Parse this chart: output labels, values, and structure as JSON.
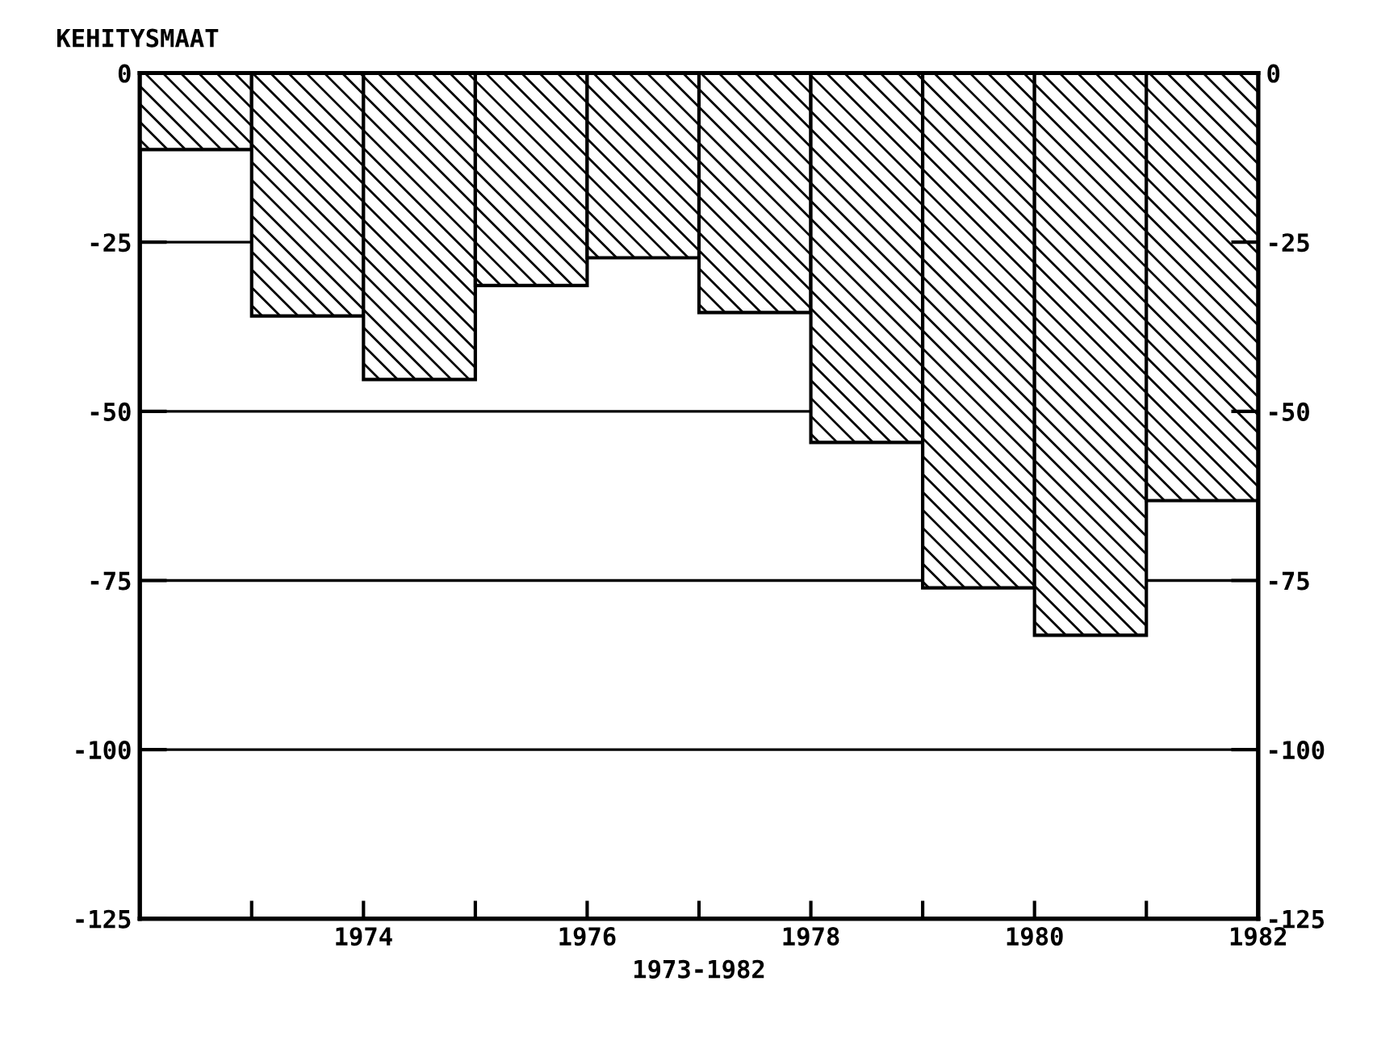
{
  "chart_data": {
    "type": "bar",
    "title": "KEHITYSMAAT",
    "xlabel": "1973-1982",
    "x": [
      1972.5,
      1973.5,
      1974.5,
      1975.5,
      1976.5,
      1977.5,
      1978.5,
      1979.5,
      1980.5,
      1981.5
    ],
    "values": [
      -11.3,
      -35.9,
      -45.3,
      -31.4,
      -27.3,
      -35.4,
      -54.6,
      -76.1,
      -83.1,
      -63.2
    ],
    "color": "#000000",
    "xlim": [
      1972,
      1982
    ],
    "xticks": [
      {
        "value": 1973,
        "label": null
      },
      1974,
      {
        "value": 1975,
        "label": null
      },
      1976,
      {
        "value": 1977,
        "label": null
      },
      1978,
      {
        "value": 1979,
        "label": null
      },
      1980,
      {
        "value": 1981,
        "label": null
      },
      1982
    ],
    "ylim": [
      -125,
      0
    ],
    "yticks": [
      0,
      -25,
      -50,
      -75,
      -100,
      -125
    ],
    "y2lim": [
      -125,
      0
    ],
    "y2ticks": [
      0,
      -25,
      -50,
      -75,
      -100,
      -125
    ],
    "grid": "y"
  }
}
